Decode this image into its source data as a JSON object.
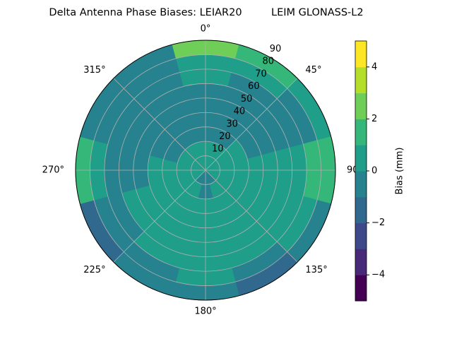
{
  "chart_data": {
    "type": "polar_contour",
    "title": "Delta Antenna Phase Biases: LEIAR20         LEIM GLONASS-L2",
    "rlim": [
      0,
      90
    ],
    "rticks": [
      10,
      20,
      30,
      40,
      50,
      60,
      70,
      80,
      90
    ],
    "thetaticks": [
      {
        "value": 0,
        "label": "0°"
      },
      {
        "value": 45,
        "label": "45°"
      },
      {
        "value": 90,
        "label": "90°"
      },
      {
        "value": 135,
        "label": "135°"
      },
      {
        "value": 180,
        "label": "180°"
      },
      {
        "value": 225,
        "label": "225°"
      },
      {
        "value": 270,
        "label": "270°"
      },
      {
        "value": 315,
        "label": "315°"
      }
    ],
    "grid": true,
    "r": [
      5,
      15,
      25,
      35,
      45,
      55,
      65,
      75,
      85
    ],
    "theta": [
      0,
      30,
      60,
      90,
      120,
      150,
      180,
      210,
      240,
      270,
      300,
      330
    ],
    "values": [
      [
        0.3,
        0.3,
        0.4,
        0.4,
        0.2,
        -0.2,
        -0.3,
        -0.2,
        0.2,
        0.3,
        0.3,
        0.3
      ],
      [
        0.2,
        0.3,
        0.5,
        0.5,
        0.3,
        0.2,
        -0.2,
        0.3,
        0.4,
        0.5,
        0.3,
        0.2
      ],
      [
        -0.3,
        -0.2,
        0.4,
        0.6,
        0.5,
        0.4,
        0.4,
        0.5,
        0.5,
        0.5,
        -0.2,
        -0.3
      ],
      [
        -0.5,
        -0.4,
        -0.2,
        0.5,
        0.5,
        0.5,
        0.6,
        0.6,
        0.5,
        0.3,
        -0.4,
        -0.5
      ],
      [
        -0.6,
        -0.5,
        -0.4,
        0.3,
        0.6,
        0.6,
        0.7,
        0.6,
        0.4,
        -0.3,
        -0.5,
        -0.6
      ],
      [
        -0.4,
        -0.5,
        -0.5,
        0.5,
        0.7,
        0.6,
        0.7,
        0.6,
        0.3,
        -0.3,
        -0.5,
        -0.5
      ],
      [
        0.2,
        -0.3,
        -0.4,
        0.8,
        0.5,
        0.3,
        0.6,
        0.5,
        -0.3,
        -0.2,
        -0.4,
        -0.3
      ],
      [
        0.8,
        0.4,
        -0.2,
        1.2,
        0.4,
        -0.4,
        0.2,
        -0.3,
        -0.6,
        0.5,
        -0.5,
        -0.4
      ],
      [
        2.3,
        1.4,
        0.3,
        1.5,
        -0.3,
        -1.5,
        -0.5,
        -0.6,
        -1.2,
        1.2,
        -0.8,
        -0.5
      ]
    ],
    "levels": [
      -5,
      -4,
      -3,
      -2,
      -1,
      0,
      1,
      2,
      3,
      4,
      5
    ],
    "colors": [
      "#440154",
      "#482878",
      "#3e4989",
      "#31688e",
      "#26828e",
      "#1f9e89",
      "#35b779",
      "#6ece58",
      "#b5de2b",
      "#fde725"
    ],
    "colorbar_label": "Bias (mm)",
    "colorbar_ticks": [
      {
        "value": -4,
        "label": "−4"
      },
      {
        "value": -2,
        "label": "−2"
      },
      0,
      2,
      4
    ]
  }
}
